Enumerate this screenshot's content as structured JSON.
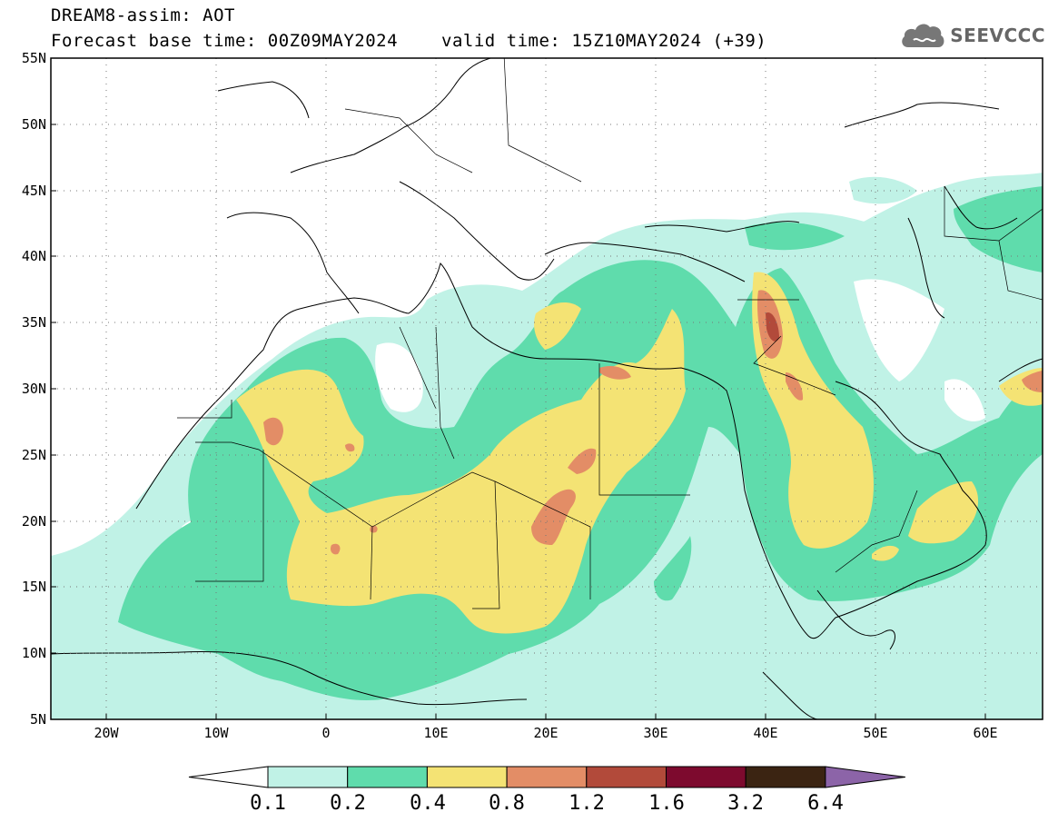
{
  "header": {
    "line1": "DREAM8-assim: AOT",
    "base_time": "Forecast base time: 00Z09MAY2024",
    "valid_time": "valid time: 15Z10MAY2024 (+39)"
  },
  "logo": {
    "text": "SEEVCCC",
    "icon": "cloud-icon"
  },
  "map": {
    "lon_range": [
      -25,
      65
    ],
    "lat_range": [
      5,
      55
    ],
    "lat_ticks": [
      "55N",
      "50N",
      "45N",
      "40N",
      "35N",
      "30N",
      "25N",
      "20N",
      "15N",
      "10N",
      "5N"
    ],
    "lon_ticks": [
      "20W",
      "10W",
      "0",
      "10E",
      "20E",
      "30E",
      "40E",
      "50E",
      "60E"
    ]
  },
  "colorbar": {
    "labels": [
      "0.1",
      "0.2",
      "0.4",
      "0.8",
      "1.2",
      "1.6",
      "3.2",
      "6.4"
    ],
    "colors": [
      "#ffffff",
      "#c0f2e6",
      "#5fdcac",
      "#f4e374",
      "#e38d66",
      "#b24a3a",
      "#7d0a2e",
      "#3b2412",
      "#8c64a8"
    ]
  }
}
